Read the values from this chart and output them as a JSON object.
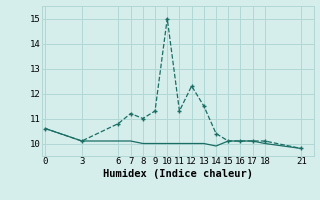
{
  "xlabel": "Humidex (Indice chaleur)",
  "background_color": "#d5eeec",
  "grid_color": "#b0d8d4",
  "line_color": "#1a6e64",
  "x_ticks": [
    0,
    3,
    6,
    7,
    8,
    9,
    10,
    11,
    12,
    13,
    14,
    15,
    16,
    17,
    18,
    21
  ],
  "xlim": [
    -0.3,
    22.0
  ],
  "ylim": [
    9.5,
    15.5
  ],
  "yticks": [
    10,
    11,
    12,
    13,
    14,
    15
  ],
  "line1_x": [
    0,
    3,
    6,
    7,
    8,
    9,
    10,
    11,
    12,
    13,
    14,
    15,
    16,
    17,
    18,
    21
  ],
  "line1_y": [
    10.6,
    10.1,
    10.8,
    11.2,
    11.0,
    11.3,
    15.0,
    11.3,
    12.3,
    11.5,
    10.4,
    10.1,
    10.1,
    10.1,
    10.1,
    9.8
  ],
  "line2_x": [
    0,
    3,
    6,
    7,
    8,
    9,
    10,
    11,
    12,
    13,
    14,
    15,
    16,
    17,
    18,
    21
  ],
  "line2_y": [
    10.6,
    10.1,
    10.1,
    10.1,
    10.0,
    10.0,
    10.0,
    10.0,
    10.0,
    10.0,
    9.9,
    10.1,
    10.1,
    10.1,
    10.0,
    9.8
  ],
  "tick_fontsize": 6.5,
  "xlabel_fontsize": 7.5
}
